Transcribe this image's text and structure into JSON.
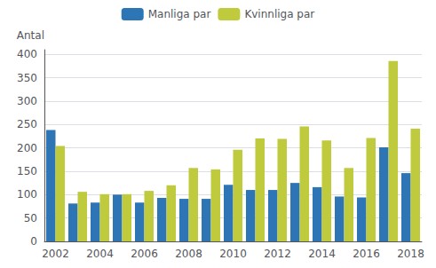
{
  "chart_data": {
    "type": "bar",
    "ylabel": "Antal",
    "categories": [
      "2002",
      null,
      "2004",
      null,
      "2006",
      null,
      "2008",
      null,
      "2010",
      null,
      "2012",
      null,
      "2014",
      null,
      "2016",
      null,
      "2018"
    ],
    "series": [
      {
        "name": "Manliga par",
        "color": "#2E75B6",
        "values": [
          238,
          81,
          83,
          100,
          83,
          93,
          91,
          91,
          121,
          110,
          110,
          125,
          116,
          96,
          94,
          201,
          146
        ]
      },
      {
        "name": "Kvinnliga par",
        "color": "#BFCA3D",
        "values": [
          204,
          106,
          101,
          101,
          108,
          120,
          157,
          154,
          196,
          220,
          219,
          246,
          216,
          157,
          221,
          386,
          241
        ]
      }
    ],
    "ylim": [
      0,
      410
    ],
    "yticks": [
      0,
      50,
      100,
      150,
      200,
      250,
      300,
      350,
      400
    ],
    "grid": true,
    "legend": "top"
  }
}
